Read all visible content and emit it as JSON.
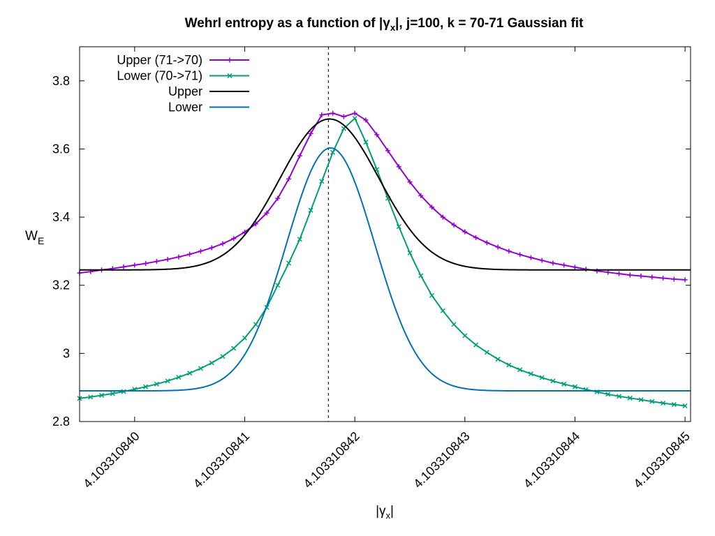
{
  "chart_data": {
    "type": "line",
    "title": {
      "prefix": "Wehrl entropy as a function of |",
      "symbol": "γ",
      "symbol_sub": "x",
      "suffix": "|,  j=100, k = 70-71 Gaussian fit"
    },
    "xlabel": {
      "prefix": "|",
      "symbol": "γ",
      "symbol_sub": "x",
      "suffix": "|"
    },
    "ylabel": {
      "main": "W",
      "sub": "E"
    },
    "x_offset": 4.10331084,
    "xlim": [
      4.1033108395,
      4.10331084505
    ],
    "ylim": [
      2.8,
      3.9
    ],
    "x_ticks": [
      {
        "value": 4.10331084,
        "label": "4.103310840"
      },
      {
        "value": 4.103310841,
        "label": "4.103310841"
      },
      {
        "value": 4.103310842,
        "label": "4.103310842"
      },
      {
        "value": 4.103310843,
        "label": "4.103310843"
      },
      {
        "value": 4.103310844,
        "label": "4.103310844"
      },
      {
        "value": 4.103310845,
        "label": "4.103310845"
      }
    ],
    "y_ticks": [
      {
        "value": 2.8,
        "label": "2.8"
      },
      {
        "value": 3.0,
        "label": "3"
      },
      {
        "value": 3.2,
        "label": "3.2"
      },
      {
        "value": 3.4,
        "label": "3.4"
      },
      {
        "value": 3.6,
        "label": "3.6"
      },
      {
        "value": 3.8,
        "label": "3.8"
      }
    ],
    "vline_x": 4.10331084176,
    "legend_position": "top-left",
    "series": [
      {
        "name": "Upper (71->70)",
        "color": "#9400d3",
        "marker": "plus",
        "x": [
          4.1033108395,
          4.1033108396,
          4.1033108397,
          4.1033108398,
          4.1033108399,
          4.10331084,
          4.1033108401,
          4.1033108402,
          4.1033108403,
          4.1033108404,
          4.1033108405,
          4.1033108406,
          4.1033108407,
          4.1033108408,
          4.1033108409,
          4.103310841,
          4.1033108411,
          4.1033108412,
          4.1033108413,
          4.1033108414,
          4.1033108415,
          4.1033108416,
          4.1033108417,
          4.1033108418,
          4.1033108419,
          4.103310842,
          4.1033108421,
          4.1033108422,
          4.1033108423,
          4.1033108424,
          4.1033108425,
          4.1033108426,
          4.1033108427,
          4.1033108428,
          4.1033108429,
          4.103310843,
          4.1033108431,
          4.1033108432,
          4.1033108433,
          4.1033108434,
          4.1033108435,
          4.1033108436,
          4.1033108437,
          4.1033108438,
          4.1033108439,
          4.103310844,
          4.1033108441,
          4.1033108442,
          4.1033108443,
          4.1033108444,
          4.1033108445,
          4.1033108446,
          4.1033108447,
          4.1033108448,
          4.1033108449,
          4.103310845
        ],
        "y": [
          3.236,
          3.24,
          3.245,
          3.249,
          3.254,
          3.259,
          3.264,
          3.27,
          3.276,
          3.283,
          3.291,
          3.3,
          3.31,
          3.322,
          3.337,
          3.356,
          3.38,
          3.412,
          3.455,
          3.512,
          3.58,
          3.645,
          3.7,
          3.705,
          3.695,
          3.705,
          3.685,
          3.642,
          3.595,
          3.548,
          3.503,
          3.463,
          3.429,
          3.4,
          3.377,
          3.357,
          3.34,
          3.325,
          3.312,
          3.3,
          3.29,
          3.281,
          3.273,
          3.265,
          3.259,
          3.253,
          3.247,
          3.242,
          3.238,
          3.234,
          3.23,
          3.227,
          3.224,
          3.221,
          3.218,
          3.216
        ]
      },
      {
        "name": "Lower (70->71)",
        "color": "#009e73",
        "marker": "cross",
        "x": [
          4.1033108395,
          4.1033108396,
          4.1033108397,
          4.1033108398,
          4.1033108399,
          4.10331084,
          4.1033108401,
          4.1033108402,
          4.1033108403,
          4.1033108404,
          4.1033108405,
          4.1033108406,
          4.1033108407,
          4.1033108408,
          4.1033108409,
          4.103310841,
          4.1033108411,
          4.1033108412,
          4.1033108413,
          4.1033108414,
          4.1033108415,
          4.1033108416,
          4.1033108417,
          4.1033108418,
          4.1033108419,
          4.103310842,
          4.1033108421,
          4.1033108422,
          4.1033108423,
          4.1033108424,
          4.1033108425,
          4.1033108426,
          4.1033108427,
          4.1033108428,
          4.1033108429,
          4.103310843,
          4.1033108431,
          4.1033108432,
          4.1033108433,
          4.1033108434,
          4.1033108435,
          4.1033108436,
          4.1033108437,
          4.1033108438,
          4.1033108439,
          4.103310844,
          4.1033108441,
          4.1033108442,
          4.1033108443,
          4.1033108444,
          4.1033108445,
          4.1033108446,
          4.1033108447,
          4.1033108448,
          4.1033108449,
          4.103310845
        ],
        "y": [
          2.868,
          2.872,
          2.877,
          2.882,
          2.888,
          2.895,
          2.902,
          2.91,
          2.919,
          2.93,
          2.942,
          2.956,
          2.972,
          2.991,
          3.015,
          3.045,
          3.085,
          3.135,
          3.2,
          3.265,
          3.335,
          3.42,
          3.505,
          3.59,
          3.66,
          3.69,
          3.62,
          3.54,
          3.455,
          3.372,
          3.295,
          3.228,
          3.17,
          3.125,
          3.085,
          3.052,
          3.025,
          3.003,
          2.983,
          2.966,
          2.952,
          2.94,
          2.929,
          2.919,
          2.91,
          2.902,
          2.894,
          2.887,
          2.88,
          2.874,
          2.869,
          2.864,
          2.859,
          2.854,
          2.85,
          2.846
        ]
      },
      {
        "name": "Upper",
        "color": "#000000",
        "marker": "none",
        "fit": {
          "baseline": 3.245,
          "amplitude": 0.443,
          "center": 4.10331084177,
          "sigma": 4.5e-10
        }
      },
      {
        "name": "Lower",
        "color": "#0072b2",
        "marker": "none",
        "fit": {
          "baseline": 2.89,
          "amplitude": 0.713,
          "center": 4.10331084178,
          "sigma": 4e-10
        }
      }
    ]
  }
}
